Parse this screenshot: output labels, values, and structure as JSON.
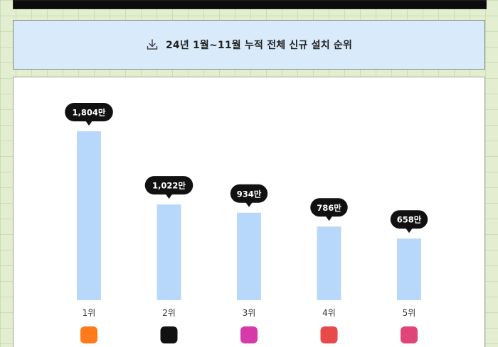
{
  "title": "24년 1월~11월 누적 전체 신규 설치 순위",
  "icons": {
    "title_icon": "download-icon"
  },
  "chart_data": {
    "type": "bar",
    "categories": [
      "1위",
      "2위",
      "3위",
      "4위",
      "5위"
    ],
    "values": [
      1804,
      1022,
      934,
      786,
      658
    ],
    "data_labels": [
      "1,804만",
      "1,022만",
      "934만",
      "786만",
      "658만"
    ],
    "unit": "만",
    "bar_color": "#b7d8fb",
    "label_color": "#111111",
    "grid": false,
    "app_icon_colors": [
      "#ff7a1a",
      "#111111",
      "#d63aa8",
      "#e84a4a",
      "#e0457a"
    ]
  }
}
